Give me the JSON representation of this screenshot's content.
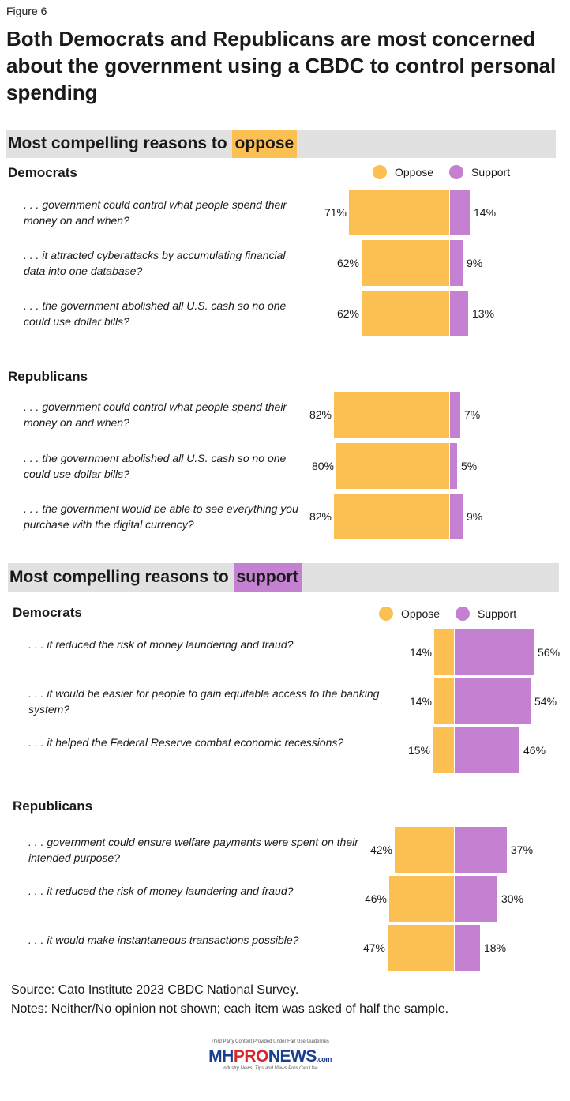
{
  "figure_label": "Figure 6",
  "title": "Both Democrats and Republicans are most concerned about the government using a CBDC to control personal spending",
  "colors": {
    "oppose": "#fcbf52",
    "support": "#c581d1",
    "band": "#e1e1e1"
  },
  "legend": {
    "oppose": "Oppose",
    "support": "Support"
  },
  "sections": [
    {
      "heading_prefix": "Most compelling reasons to ",
      "heading_highlight": "oppose",
      "groups": [
        {
          "name": "Democrats",
          "items": [
            {
              "question": ". . . government could control what people spend their money on and when?",
              "oppose": 71,
              "support": 14,
              "oppose_label": "71%",
              "support_label": "14%"
            },
            {
              "question": ". . . it attracted cyberattacks by accumulating financial data into one database?",
              "oppose": 62,
              "support": 9,
              "oppose_label": "62%",
              "support_label": "9%"
            },
            {
              "question": ". . . the government abolished all U.S. cash so no one could use dollar bills?",
              "oppose": 62,
              "support": 13,
              "oppose_label": "62%",
              "support_label": "13%"
            }
          ]
        },
        {
          "name": "Republicans",
          "items": [
            {
              "question": ". . . government could control what people spend their money on and when?",
              "oppose": 82,
              "support": 7,
              "oppose_label": "82%",
              "support_label": "7%"
            },
            {
              "question": ". . . the government abolished all U.S. cash so no one could use dollar bills?",
              "oppose": 80,
              "support": 5,
              "oppose_label": "80%",
              "support_label": "5%"
            },
            {
              "question": ". . . the government would be able to see everything you purchase with the digital currency?",
              "oppose": 82,
              "support": 9,
              "oppose_label": "82%",
              "support_label": "9%"
            }
          ]
        }
      ]
    },
    {
      "heading_prefix": "Most compelling reasons to ",
      "heading_highlight": "support",
      "groups": [
        {
          "name": "Democrats",
          "items": [
            {
              "question": ". . . it reduced the risk of money laundering and fraud?",
              "oppose": 14,
              "support": 56,
              "oppose_label": "14%",
              "support_label": "56%"
            },
            {
              "question": ". . . it would be easier for people to gain equitable access to the banking system?",
              "oppose": 14,
              "support": 54,
              "oppose_label": "14%",
              "support_label": "54%"
            },
            {
              "question": ". . . it helped the Federal Reserve combat economic recessions?",
              "oppose": 15,
              "support": 46,
              "oppose_label": "15%",
              "support_label": "46%"
            }
          ]
        },
        {
          "name": "Republicans",
          "items": [
            {
              "question": ". . . government could ensure welfare payments were spent on their intended purpose?",
              "oppose": 42,
              "support": 37,
              "oppose_label": "42%",
              "support_label": "37%"
            },
            {
              "question": ". . . it reduced the risk of money laundering and fraud?",
              "oppose": 46,
              "support": 30,
              "oppose_label": "46%",
              "support_label": "30%"
            },
            {
              "question": ". . . it would make instantaneous transactions possible?",
              "oppose": 47,
              "support": 18,
              "oppose_label": "47%",
              "support_label": "18%"
            }
          ]
        }
      ]
    }
  ],
  "chart_data": {
    "type": "bar",
    "orientation": "horizontal-diverging",
    "series_names": [
      "Oppose",
      "Support"
    ],
    "legend_placement": "top-right"
  },
  "source": "Source: Cato Institute 2023 CBDC National Survey.",
  "notes": "Notes: Neither/No opinion not shown; each item was asked of half the sample.",
  "logo": {
    "fine_print": "Third Party Content Provided Under Fair Use Guidelines",
    "mark_a": "MH",
    "mark_b": "PRO",
    "mark_c": "NEWS",
    "mark_d": ".com",
    "tagline": "Industry News, Tips and Views Pros Can Use"
  }
}
